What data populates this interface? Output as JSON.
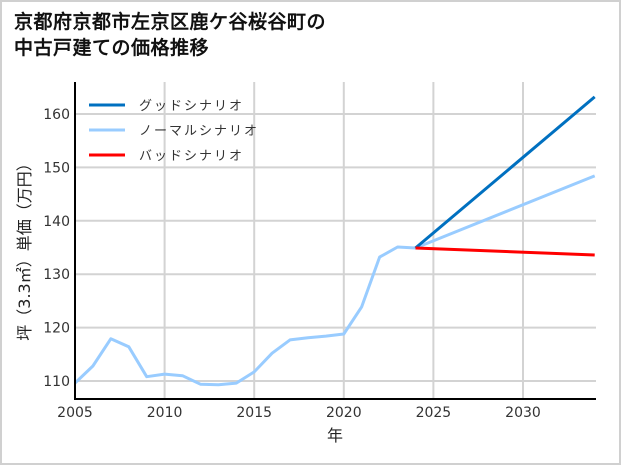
{
  "title_line1": "京都府京都市左京区鹿ケ谷桜谷町の",
  "title_line2": "中古戸建ての価格推移",
  "chart_data": {
    "type": "line",
    "title": "京都府京都市左京区鹿ケ谷桜谷町の中古戸建ての価格推移",
    "xlabel": "年",
    "ylabel": "坪（3.3㎡）単価（万円）",
    "xlim": [
      2005,
      2034
    ],
    "ylim": [
      106.5,
      165
    ],
    "xticks": [
      2005,
      2010,
      2015,
      2020,
      2025,
      2030
    ],
    "yticks": [
      110,
      120,
      130,
      140,
      150,
      160
    ],
    "grid": true,
    "legend_position": "upper left",
    "series": [
      {
        "name": "グッドシナリオ",
        "color": "#0070C0",
        "x": [
          2024,
          2034
        ],
        "values": [
          134.9,
          163.2
        ]
      },
      {
        "name": "ノーマルシナリオ",
        "color": "#99CCFF",
        "x": [
          2005,
          2006,
          2007,
          2008,
          2009,
          2010,
          2011,
          2012,
          2013,
          2014,
          2015,
          2016,
          2017,
          2018,
          2019,
          2020,
          2021,
          2022,
          2023,
          2024,
          2034
        ],
        "values": [
          109.6,
          112.8,
          117.9,
          116.4,
          110.8,
          111.3,
          111.0,
          109.4,
          109.3,
          109.6,
          111.7,
          115.2,
          117.7,
          118.1,
          118.4,
          118.8,
          123.9,
          133.2,
          135.1,
          134.9,
          148.4
        ]
      },
      {
        "name": "バッドシナリオ",
        "color": "#FF0000",
        "x": [
          2024,
          2034
        ],
        "values": [
          134.9,
          133.6
        ]
      }
    ]
  }
}
